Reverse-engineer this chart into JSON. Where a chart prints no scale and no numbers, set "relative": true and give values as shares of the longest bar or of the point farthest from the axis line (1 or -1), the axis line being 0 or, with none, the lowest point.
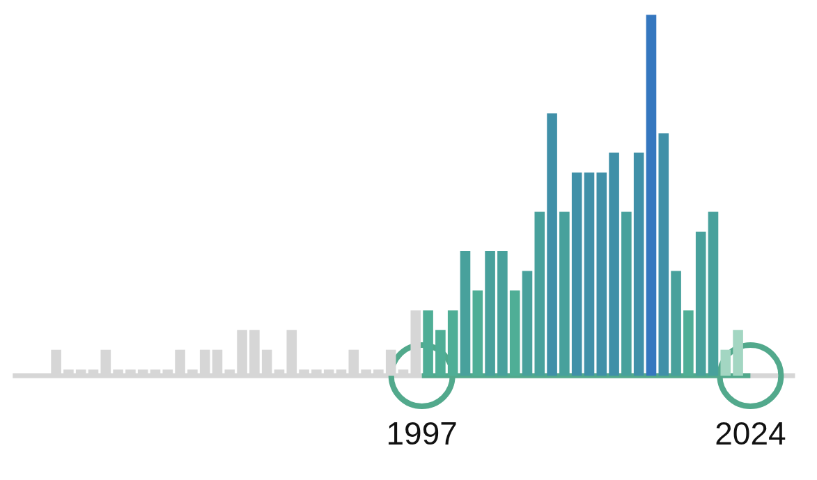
{
  "chart_data": {
    "type": "bar",
    "relative": true,
    "categories": [
      null,
      null,
      null,
      null,
      null,
      null,
      null,
      null,
      null,
      null,
      null,
      null,
      null,
      null,
      null,
      null,
      null,
      null,
      null,
      null,
      null,
      null,
      null,
      null,
      null,
      null,
      null,
      null,
      null,
      null,
      null,
      null,
      null,
      null,
      null,
      null,
      null,
      null,
      null,
      null,
      null,
      null,
      null,
      null,
      null,
      null,
      null,
      null,
      null,
      null,
      null,
      null,
      null,
      null,
      null,
      null
    ],
    "values": [
      0.072,
      0.017,
      0.017,
      0.017,
      0.072,
      0.017,
      0.017,
      0.017,
      0.017,
      0.017,
      0.072,
      0.017,
      0.072,
      0.072,
      0.017,
      0.127,
      0.127,
      0.072,
      0.017,
      0.127,
      0.017,
      0.017,
      0.017,
      0.017,
      0.072,
      0.017,
      0.017,
      0.072,
      0.017,
      0.181,
      0.181,
      0.127,
      0.181,
      0.345,
      0.236,
      0.345,
      0.345,
      0.236,
      0.29,
      0.454,
      0.727,
      0.454,
      0.563,
      0.563,
      0.563,
      0.618,
      0.454,
      0.618,
      1,
      0.672,
      0.29,
      0.181,
      0.399,
      0.454,
      0.072,
      0.127
    ],
    "colors": [
      "#d6d6d6",
      "#d6d6d6",
      "#d6d6d6",
      "#d6d6d6",
      "#d6d6d6",
      "#d6d6d6",
      "#d6d6d6",
      "#d6d6d6",
      "#d6d6d6",
      "#d6d6d6",
      "#d6d6d6",
      "#d6d6d6",
      "#d6d6d6",
      "#d6d6d6",
      "#d6d6d6",
      "#d6d6d6",
      "#d6d6d6",
      "#d6d6d6",
      "#d6d6d6",
      "#d6d6d6",
      "#d6d6d6",
      "#d6d6d6",
      "#d6d6d6",
      "#d6d6d6",
      "#d6d6d6",
      "#d6d6d6",
      "#d6d6d6",
      "#d6d6d6",
      "#d6d6d6",
      "#d6d6d6",
      "#4fae96",
      "#4fae96",
      "#4fae96",
      "#48a19c",
      "#4fae96",
      "#48a19c",
      "#48a19c",
      "#4fae96",
      "#48a19c",
      "#48a19c",
      "#4090a8",
      "#48a19c",
      "#4090a8",
      "#4090a8",
      "#4090a8",
      "#4090a8",
      "#48a19c",
      "#4090a8",
      "#3577bf",
      "#4090a8",
      "#48a19c",
      "#4fae96",
      "#48a19c",
      "#48a19c",
      "#a3d6c2",
      "#a3d6c2"
    ],
    "annotations": [
      "1997",
      "2024"
    ]
  }
}
